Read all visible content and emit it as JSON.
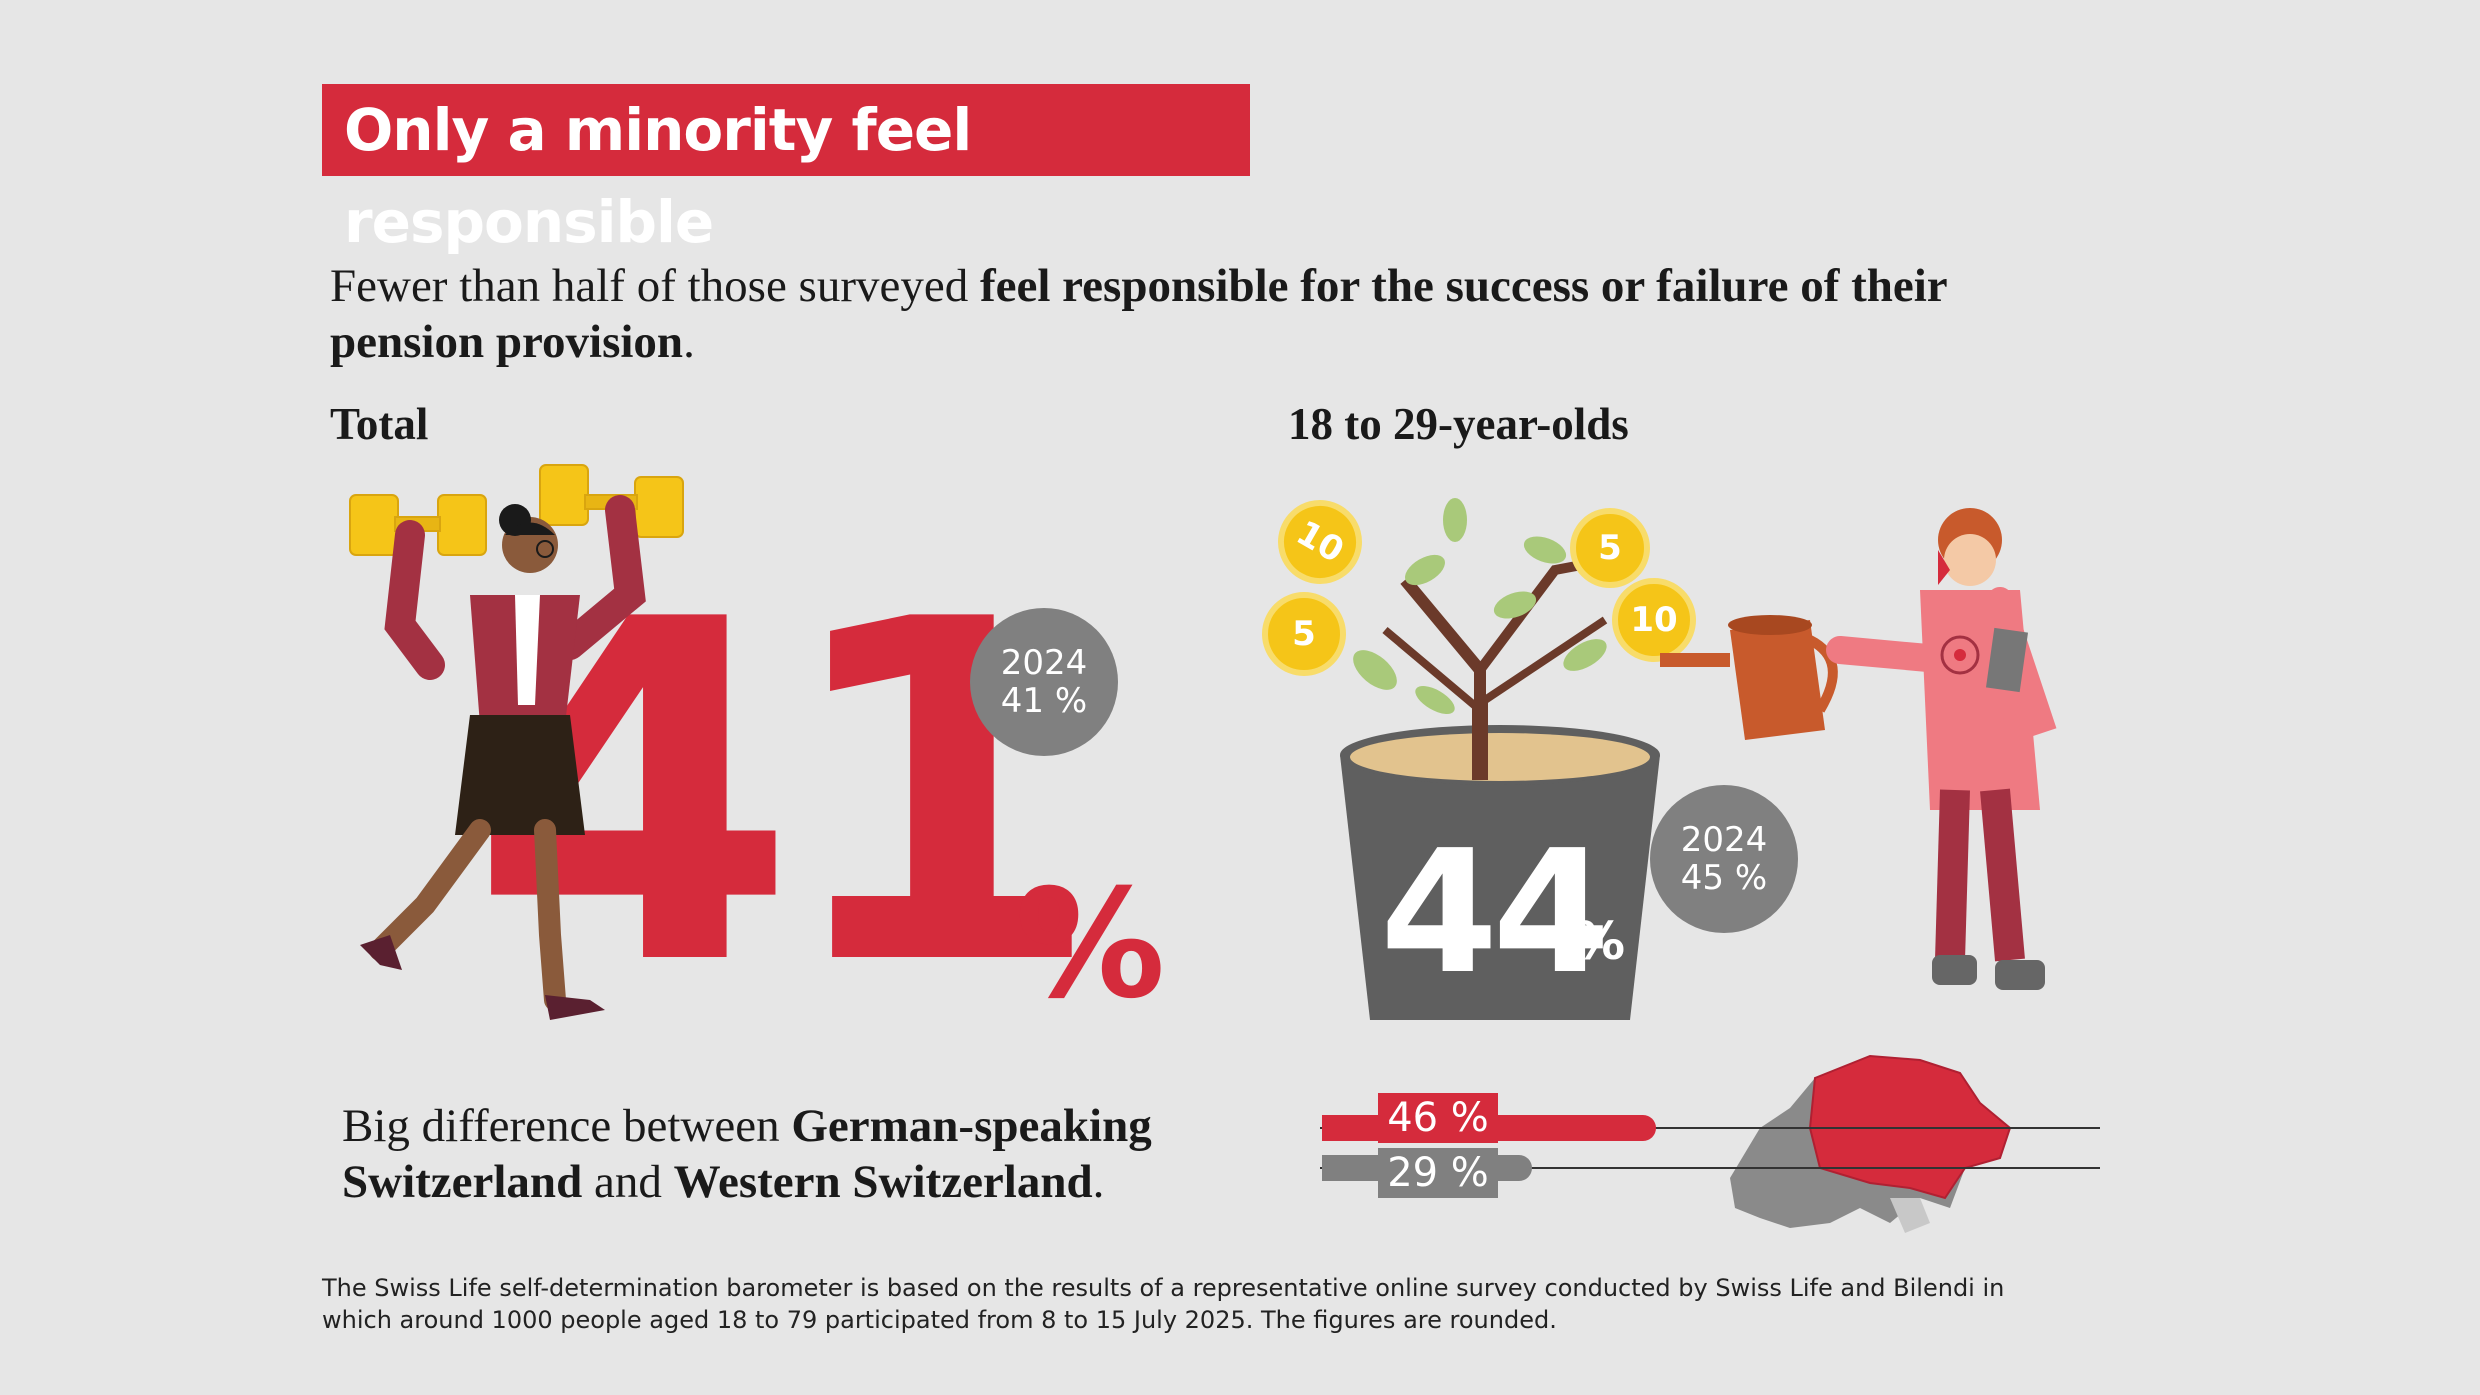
{
  "title": "Only a minority feel responsible",
  "intro": {
    "plain": "Fewer than half of those surveyed ",
    "bold": "feel responsible for the success or failure of their pension provision",
    "end": "."
  },
  "total": {
    "label": "Total",
    "value": "41",
    "unit": "%",
    "prev_year": "2024",
    "prev_value": "41 %"
  },
  "young": {
    "label": "18 to 29-year-olds",
    "value": "44",
    "unit": "%",
    "prev_year": "2024",
    "prev_value": "45 %"
  },
  "coins": [
    "10",
    "5",
    "5",
    "10"
  ],
  "difference": {
    "p1": "Big difference between ",
    "b1": "German-speaking",
    "b2": "Switzerland",
    "p2": " and ",
    "b3": "Western Switzerland",
    "end": "."
  },
  "regions": {
    "german": {
      "label": "46 %",
      "value": 46
    },
    "western": {
      "label": "29 %",
      "value": 29
    }
  },
  "footnote": "The Swiss Life self-determination barometer is based on the results of a representative online survey conducted by Swiss Life and Bilendi in which around 1000 people aged 18 to 79 participated from 8 to 15 July 2025. The figures are rounded.",
  "colors": {
    "accent": "#d52b3c",
    "grey": "#808080",
    "background": "#e6e6e6"
  },
  "icons": [
    "weightlifting-woman-icon",
    "money-tree-icon",
    "watering-can-icon",
    "gardener-girl-icon",
    "switzerland-map-icon"
  ]
}
